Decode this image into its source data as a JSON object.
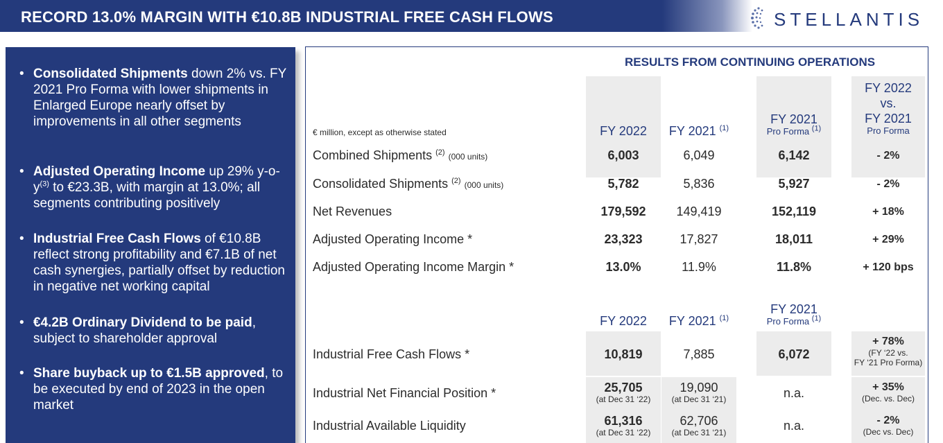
{
  "header": {
    "title": "RECORD 13.0% MARGIN WITH €10.8B INDUSTRIAL FREE CASH FLOWS",
    "logo_text": "STELLANTIS",
    "logo_icon": "stellantis-dots-icon",
    "brand_color": "#243a7c"
  },
  "bullets": [
    {
      "bold": "Consolidated Shipments",
      "text": " down 2% vs. FY 2021 Pro Forma with lower shipments in Enlarged Europe nearly offset by improvements in all other segments"
    },
    {
      "bold": "Adjusted Operating Income",
      "text_a": " up 29% y-o-y",
      "sup": "(3)",
      "text_b": " to €23.3B, with margin at 13.0%; all segments contributing positively"
    },
    {
      "bold": "Industrial Free Cash Flows",
      "text": " of €10.8B reflect strong profitability and €7.1B of net cash synergies, partially offset by reduction in negative net working capital"
    },
    {
      "bold": "€4.2B Ordinary Dividend to be paid",
      "text": ", subject to shareholder approval"
    },
    {
      "bold": "Share buyback up to €1.5B approved",
      "text": ", to be executed by end of 2023 in the open market"
    }
  ],
  "table": {
    "section_title": "RESULTS FROM CONTINUING OPERATIONS",
    "units_note": "€ million, except as otherwise stated",
    "columns": {
      "fy2022": "FY 2022",
      "fy2021": "FY 2021",
      "fy2021_sup": "(1)",
      "proforma_top": "FY 2021",
      "proforma_sub": "Pro Forma",
      "proforma_sup": "(1)",
      "vs_line1": "FY 2022",
      "vs_line2": "vs.",
      "vs_line3": "FY 2021",
      "vs_line4": "Pro Forma"
    },
    "rows": [
      {
        "label": "Combined Shipments",
        "sup": "(2)",
        "unit": "(000 units)",
        "fy2022": "6,003",
        "fy2021": "6,049",
        "proforma": "6,142",
        "change": "- 2%"
      },
      {
        "label": "Consolidated Shipments",
        "sup": "(2)",
        "unit": "(000 units)",
        "fy2022": "5,782",
        "fy2021": "5,836",
        "proforma": "5,927",
        "change": "- 2%"
      },
      {
        "label": "Net Revenues",
        "fy2022": "179,592",
        "fy2021": "149,419",
        "proforma": "152,119",
        "change": "+ 18%"
      },
      {
        "label": "Adjusted Operating Income *",
        "fy2022": "23,323",
        "fy2021": "17,827",
        "proforma": "18,011",
        "change": "+ 29%"
      },
      {
        "label": "Adjusted Operating Income Margin *",
        "fy2022": "13.0%",
        "fy2021": "11.9%",
        "proforma": "11.8%",
        "change": "+ 120 bps"
      }
    ],
    "rows2": [
      {
        "label": "Industrial Free Cash Flows *",
        "fy2022": "10,819",
        "fy2021": "7,885",
        "proforma": "6,072",
        "change": "+ 78%",
        "change_note_1": "(FY ‘22 vs.",
        "change_note_2": "FY ‘21 Pro Forma)"
      },
      {
        "label": "Industrial Net Financial Position *",
        "fy2022": "25,705",
        "fy2022_note": "(at Dec 31 ‘22)",
        "fy2021": "19,090",
        "fy2021_note": "(at Dec 31 ‘21)",
        "proforma": "n.a.",
        "change": "+ 35%",
        "change_note_1": "(Dec. vs. Dec)"
      },
      {
        "label": "Industrial Available Liquidity",
        "fy2022": "61,316",
        "fy2022_note": "(at Dec 31 ‘22)",
        "fy2021": "62,706",
        "fy2021_note": "(at Dec 31 ‘21)",
        "proforma": "n.a.",
        "change": "- 2%",
        "change_note_1": "(Dec vs. Dec)"
      }
    ]
  }
}
